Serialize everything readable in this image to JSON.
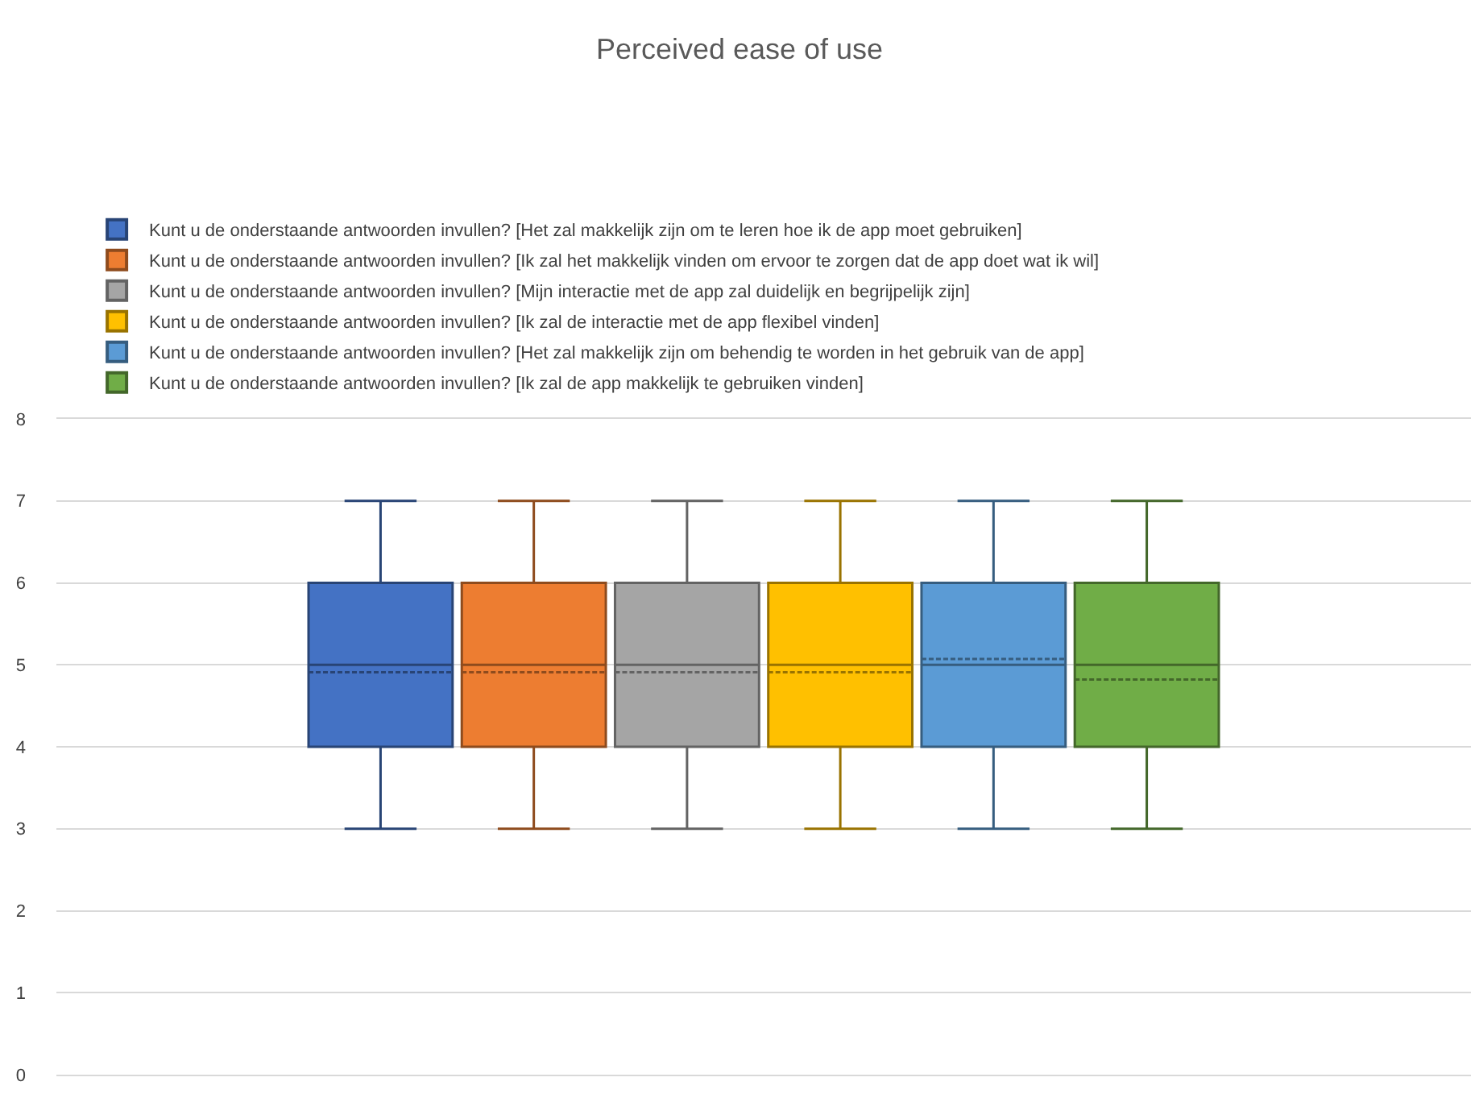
{
  "chart_data": {
    "type": "box",
    "title": "Perceived ease of use",
    "categories": [
      null
    ],
    "ylim": [
      0,
      8
    ],
    "yticks": [
      0,
      1,
      2,
      3,
      4,
      5,
      6,
      7,
      8
    ],
    "grid": "y",
    "legend": "top",
    "tick_labels": "y",
    "series": [
      {
        "name": "Kunt u de onderstaande antwoorden invullen? [Het zal makkelijk zijn om te leren hoe ik de app moet gebruiken]",
        "color": "#4472c4",
        "boxes": [
          {
            "low": 3,
            "q1": 4,
            "median": 5,
            "q3": 6,
            "high": 7,
            "mean": 4.91
          }
        ]
      },
      {
        "name": "Kunt u de onderstaande antwoorden invullen? [Ik zal het makkelijk vinden om ervoor te zorgen dat de app doet wat ik wil]",
        "color": "#ed7d31",
        "boxes": [
          {
            "low": 3,
            "q1": 4,
            "median": 5,
            "q3": 6,
            "high": 7,
            "mean": 4.91
          }
        ]
      },
      {
        "name": "Kunt u de onderstaande antwoorden invullen? [Mijn interactie met de app zal duidelijk en begrijpelijk zijn]",
        "color": "#a5a5a5",
        "boxes": [
          {
            "low": 3,
            "q1": 4,
            "median": 5,
            "q3": 6,
            "high": 7,
            "mean": 4.91
          }
        ]
      },
      {
        "name": "Kunt u de onderstaande antwoorden invullen? [Ik zal de interactie met de app flexibel vinden]",
        "color": "#ffc000",
        "boxes": [
          {
            "low": 3,
            "q1": 4,
            "median": 5,
            "q3": 6,
            "high": 7,
            "mean": 4.91
          }
        ]
      },
      {
        "name": "Kunt u de onderstaande antwoorden invullen? [Het zal makkelijk zijn om behendig te worden in het gebruik van de app]",
        "color": "#5b9bd5",
        "boxes": [
          {
            "low": 3,
            "q1": 4,
            "median": 5,
            "q3": 6,
            "high": 7,
            "mean": 5.07
          }
        ]
      },
      {
        "name": "Kunt u de onderstaande antwoorden invullen? [Ik zal de app makkelijk te gebruiken vinden]",
        "color": "#70ad47",
        "boxes": [
          {
            "low": 3,
            "q1": 4,
            "median": 5,
            "q3": 6,
            "high": 7,
            "mean": 4.82
          }
        ]
      }
    ]
  }
}
